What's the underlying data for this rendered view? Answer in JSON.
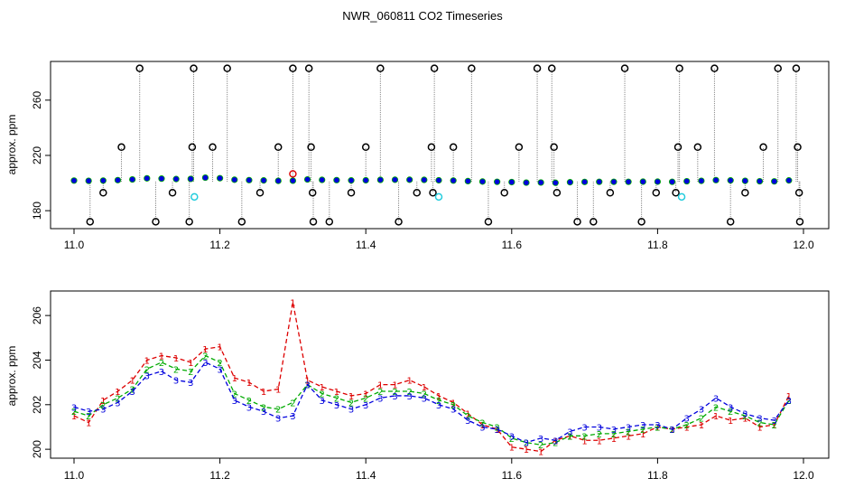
{
  "figure": {
    "title": "NWR_060811  CO2 Timeseries"
  },
  "chart_data": [
    {
      "type": "scatter",
      "panel": "top",
      "title": "",
      "xlabel": "",
      "ylabel": "approx. ppm",
      "xlim": [
        11.0,
        12.0
      ],
      "ylim": [
        167,
        288
      ],
      "x_ticks": [
        "11.0",
        "11.2",
        "11.4",
        "11.6",
        "11.8",
        "12.0"
      ],
      "y_ticks": [
        "180",
        "220",
        "260"
      ],
      "grid": false,
      "series": [
        {
          "name": "baseline-blue",
          "color": "#0000dd",
          "x": [
            11.0,
            11.02,
            11.04,
            11.06,
            11.08,
            11.1,
            11.12,
            11.14,
            11.16,
            11.18,
            11.2,
            11.22,
            11.24,
            11.26,
            11.28,
            11.3,
            11.32,
            11.34,
            11.36,
            11.38,
            11.4,
            11.42,
            11.44,
            11.46,
            11.48,
            11.5,
            11.52,
            11.54,
            11.56,
            11.58,
            11.6,
            11.62,
            11.64,
            11.66,
            11.68,
            11.7,
            11.72,
            11.74,
            11.76,
            11.78,
            11.8,
            11.82,
            11.84,
            11.86,
            11.88,
            11.9,
            11.92,
            11.94,
            11.96,
            11.98
          ],
          "y": [
            201.8,
            201.6,
            201.8,
            202.1,
            202.6,
            203.4,
            203.2,
            202.9,
            203.0,
            203.9,
            203.5,
            202.4,
            202.1,
            201.9,
            201.6,
            201.7,
            202.6,
            202.3,
            202.1,
            201.9,
            202.0,
            202.3,
            202.4,
            202.4,
            202.3,
            202.0,
            201.8,
            201.4,
            201.1,
            200.9,
            200.7,
            200.3,
            200.4,
            200.2,
            200.6,
            200.8,
            200.9,
            200.9,
            200.9,
            201.0,
            201.0,
            200.9,
            201.3,
            201.6,
            202.1,
            201.9,
            201.6,
            201.3,
            201.2,
            201.9
          ]
        },
        {
          "name": "peak-red",
          "color": "#dd0000",
          "x": [
            11.3
          ],
          "y": [
            206.6
          ]
        },
        {
          "name": "outliers-black",
          "color": "#000000",
          "x": [
            11.022,
            11.04,
            11.065,
            11.09,
            11.112,
            11.135,
            11.158,
            11.162,
            11.164,
            11.19,
            11.21,
            11.23,
            11.255,
            11.28,
            11.3,
            11.322,
            11.325,
            11.327,
            11.328,
            11.35,
            11.38,
            11.4,
            11.42,
            11.445,
            11.47,
            11.49,
            11.492,
            11.494,
            11.52,
            11.545,
            11.568,
            11.59,
            11.61,
            11.635,
            11.655,
            11.658,
            11.662,
            11.69,
            11.712,
            11.735,
            11.755,
            11.778,
            11.798,
            11.825,
            11.828,
            11.83,
            11.855,
            11.878,
            11.9,
            11.92,
            11.945,
            11.965,
            11.99,
            11.992,
            11.994,
            11.995
          ],
          "y": [
            172,
            193,
            226,
            283,
            172,
            193,
            172,
            226,
            283,
            226,
            283,
            172,
            193,
            226,
            283,
            283,
            226,
            193,
            172,
            172,
            193,
            226,
            283,
            172,
            193,
            226,
            193,
            283,
            226,
            283,
            172,
            193,
            226,
            283,
            283,
            226,
            193,
            172,
            172,
            193,
            283,
            172,
            193,
            193,
            226,
            283,
            226,
            283,
            172,
            193,
            226,
            283,
            283,
            226,
            193,
            172
          ]
        },
        {
          "name": "outliers-cyan",
          "color": "#22ccdd",
          "x": [
            11.165,
            11.5,
            11.833
          ],
          "y": [
            190,
            190,
            190
          ]
        }
      ]
    },
    {
      "type": "line",
      "panel": "bottom",
      "title": "",
      "xlabel": "",
      "ylabel": "approx. ppm",
      "xlim": [
        11.0,
        12.0
      ],
      "ylim": [
        199.6,
        207.1
      ],
      "x_ticks": [
        "11.0",
        "11.2",
        "11.4",
        "11.6",
        "11.8",
        "12.0"
      ],
      "y_ticks": [
        "200",
        "202",
        "204",
        "206"
      ],
      "grid": false,
      "series": [
        {
          "name": "1",
          "color": "#dd0000",
          "marker": "1",
          "x": [
            11.0,
            11.02,
            11.04,
            11.06,
            11.08,
            11.1,
            11.12,
            11.14,
            11.16,
            11.18,
            11.2,
            11.22,
            11.24,
            11.26,
            11.28,
            11.3,
            11.32,
            11.34,
            11.36,
            11.38,
            11.4,
            11.42,
            11.44,
            11.46,
            11.48,
            11.5,
            11.52,
            11.54,
            11.56,
            11.58,
            11.6,
            11.62,
            11.64,
            11.66,
            11.68,
            11.7,
            11.72,
            11.74,
            11.76,
            11.78,
            11.8,
            11.82,
            11.84,
            11.86,
            11.88,
            11.9,
            11.92,
            11.94,
            11.96,
            11.98
          ],
          "y": [
            201.5,
            201.2,
            202.2,
            202.6,
            203.1,
            204.0,
            204.2,
            204.1,
            203.9,
            204.5,
            204.6,
            203.2,
            203.0,
            202.6,
            202.7,
            206.6,
            203.1,
            202.8,
            202.6,
            202.4,
            202.5,
            202.9,
            202.9,
            203.1,
            202.8,
            202.4,
            202.1,
            201.6,
            201.1,
            200.9,
            200.1,
            200.0,
            199.9,
            200.4,
            200.6,
            200.4,
            200.4,
            200.5,
            200.6,
            200.7,
            201.0,
            200.9,
            201.0,
            201.1,
            201.5,
            201.3,
            201.4,
            201.0,
            201.1,
            202.4
          ]
        },
        {
          "name": "2",
          "color": "#00aa00",
          "marker": "2",
          "x": [
            11.0,
            11.02,
            11.04,
            11.06,
            11.08,
            11.1,
            11.12,
            11.14,
            11.16,
            11.18,
            11.2,
            11.22,
            11.24,
            11.26,
            11.28,
            11.3,
            11.32,
            11.34,
            11.36,
            11.38,
            11.4,
            11.42,
            11.44,
            11.46,
            11.48,
            11.5,
            11.52,
            11.54,
            11.56,
            11.58,
            11.6,
            11.62,
            11.64,
            11.66,
            11.68,
            11.7,
            11.72,
            11.74,
            11.76,
            11.78,
            11.8,
            11.82,
            11.84,
            11.86,
            11.88,
            11.9,
            11.92,
            11.94,
            11.96,
            11.98
          ],
          "y": [
            201.7,
            201.5,
            202.0,
            202.3,
            202.7,
            203.6,
            203.9,
            203.6,
            203.5,
            204.2,
            203.9,
            202.5,
            202.2,
            201.9,
            201.8,
            202.1,
            202.9,
            202.5,
            202.3,
            202.1,
            202.3,
            202.6,
            202.6,
            202.6,
            202.5,
            202.2,
            202.0,
            201.5,
            201.2,
            201.0,
            200.5,
            200.3,
            200.2,
            200.3,
            200.6,
            200.6,
            200.7,
            200.7,
            200.8,
            200.9,
            201.0,
            200.9,
            201.1,
            201.4,
            201.9,
            201.7,
            201.5,
            201.2,
            201.1,
            202.2
          ]
        },
        {
          "name": "3",
          "color": "#0000dd",
          "marker": "3",
          "x": [
            11.0,
            11.02,
            11.04,
            11.06,
            11.08,
            11.1,
            11.12,
            11.14,
            11.16,
            11.18,
            11.2,
            11.22,
            11.24,
            11.26,
            11.28,
            11.3,
            11.32,
            11.34,
            11.36,
            11.38,
            11.4,
            11.42,
            11.44,
            11.46,
            11.48,
            11.5,
            11.52,
            11.54,
            11.56,
            11.58,
            11.6,
            11.62,
            11.64,
            11.66,
            11.68,
            11.7,
            11.72,
            11.74,
            11.76,
            11.78,
            11.8,
            11.82,
            11.84,
            11.86,
            11.88,
            11.9,
            11.92,
            11.94,
            11.96,
            11.98
          ],
          "y": [
            201.9,
            201.7,
            201.8,
            202.1,
            202.6,
            203.3,
            203.5,
            203.1,
            203.0,
            203.9,
            203.6,
            202.2,
            201.9,
            201.7,
            201.4,
            201.5,
            202.9,
            202.2,
            202.0,
            201.8,
            202.0,
            202.3,
            202.4,
            202.4,
            202.3,
            202.0,
            201.8,
            201.3,
            201.0,
            200.9,
            200.6,
            200.3,
            200.5,
            200.4,
            200.8,
            201.0,
            201.0,
            200.9,
            201.0,
            201.1,
            201.1,
            200.9,
            201.4,
            201.8,
            202.3,
            201.9,
            201.6,
            201.4,
            201.3,
            202.2
          ]
        }
      ]
    }
  ]
}
